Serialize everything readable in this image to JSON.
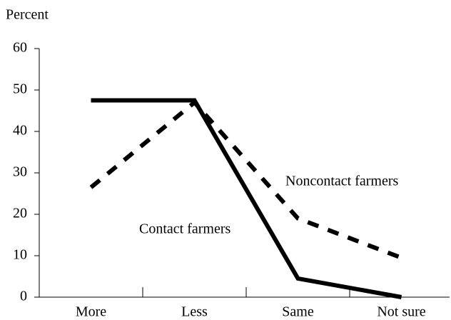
{
  "chart_data": {
    "type": "line",
    "y_label": "Percent",
    "categories": [
      "More",
      "Less",
      "Same",
      "Not sure"
    ],
    "series": [
      {
        "name": "Contact farmers",
        "color": "#000000",
        "style": "solid",
        "values": [
          47.5,
          47.5,
          4.5,
          0
        ]
      },
      {
        "name": "Noncontact farmers",
        "color": "#000000",
        "style": "dashed",
        "values": [
          26.5,
          47,
          19,
          9.5
        ]
      }
    ],
    "ylim": [
      0,
      60
    ],
    "yticks": [
      0,
      10,
      20,
      30,
      40,
      50,
      60
    ],
    "grid": false
  }
}
